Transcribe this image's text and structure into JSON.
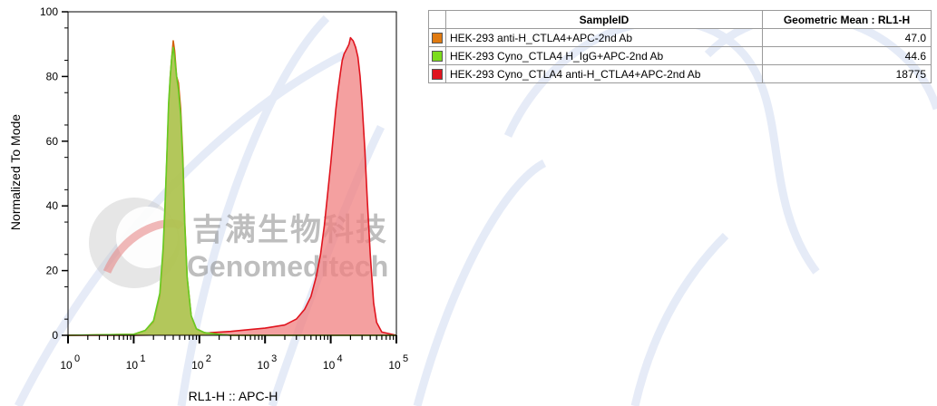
{
  "chart_data": {
    "type": "area",
    "title": "",
    "xlabel": "RL1-H :: APC-H",
    "ylabel": "Normalized To Mode",
    "x_scale": "log",
    "xlim": [
      1,
      100000
    ],
    "ylim": [
      0,
      100
    ],
    "x_ticks": [
      {
        "base": "10",
        "exp": "0"
      },
      {
        "base": "10",
        "exp": "1"
      },
      {
        "base": "10",
        "exp": "2"
      },
      {
        "base": "10",
        "exp": "3"
      },
      {
        "base": "10",
        "exp": "4"
      },
      {
        "base": "10",
        "exp": "5"
      }
    ],
    "y_ticks": [
      "0",
      "20",
      "40",
      "60",
      "80",
      "100"
    ],
    "grid": false,
    "series": [
      {
        "name": "HEK-293 Cyno_CTLA4 anti-H_CTLA4+APC-2nd Ab",
        "color": "#e0141e",
        "fill": "#f08080",
        "x": [
          1,
          10,
          100,
          150,
          300,
          600,
          1000,
          2000,
          3000,
          4000,
          5000,
          6000,
          7000,
          8000,
          9000,
          10000,
          11000,
          12000,
          13000,
          14000,
          15000,
          16000,
          17000,
          18000,
          19000,
          20000,
          22000,
          24000,
          26000,
          28000,
          30000,
          33000,
          36000,
          40000,
          45000,
          50000,
          60000,
          100000
        ],
        "y": [
          0,
          0,
          0.3,
          0.8,
          1.2,
          1.8,
          2.2,
          3.2,
          5,
          8,
          12,
          18,
          25,
          34,
          44,
          53,
          62,
          70,
          76,
          81,
          85,
          87,
          88,
          89,
          90,
          92,
          91,
          89,
          86,
          80,
          72,
          58,
          42,
          25,
          10,
          4,
          1,
          0
        ]
      },
      {
        "name": "HEK-293 anti-H_CTLA4+APC-2nd Ab",
        "color": "#d45f0a",
        "fill": "#c0a03a",
        "x": [
          1,
          10,
          15,
          20,
          25,
          28,
          30,
          32,
          34,
          36,
          38,
          40,
          42,
          45,
          48,
          52,
          56,
          60,
          65,
          75,
          90,
          120,
          200,
          300,
          100000
        ],
        "y": [
          0,
          0.3,
          1.5,
          4,
          12,
          25,
          38,
          55,
          70,
          80,
          86,
          91,
          88,
          80,
          78,
          70,
          55,
          35,
          18,
          6,
          2,
          0.8,
          0.3,
          0,
          0
        ]
      },
      {
        "name": "HEK-293 Cyno_CTLA4 H_IgG+APC-2nd Ab",
        "color": "#66cc22",
        "fill": "#aacc55",
        "x": [
          1,
          10,
          15,
          20,
          25,
          28,
          30,
          32,
          34,
          36,
          38,
          40,
          42,
          45,
          48,
          52,
          56,
          60,
          65,
          75,
          90,
          120,
          200,
          300,
          100000
        ],
        "y": [
          0,
          0.3,
          1.5,
          4.5,
          13,
          27,
          40,
          56,
          72,
          80,
          86,
          89,
          86,
          80,
          76,
          68,
          53,
          34,
          18,
          6,
          2,
          0.8,
          0.3,
          0,
          0
        ]
      }
    ]
  },
  "watermark": {
    "text_cn": "吉满生物科技",
    "text_en": "Genomeditech"
  },
  "table": {
    "headers": [
      "SampleID",
      "Geometric Mean : RL1-H"
    ],
    "rows": [
      {
        "color": "#e07a10",
        "name": "HEK-293 anti-H_CTLA4+APC-2nd Ab",
        "value": "47.0"
      },
      {
        "color": "#7cdc1c",
        "name": "HEK-293 Cyno_CTLA4 H_IgG+APC-2nd Ab",
        "value": "44.6"
      },
      {
        "color": "#e0141e",
        "name": "HEK-293 Cyno_CTLA4 anti-H_CTLA4+APC-2nd Ab",
        "value": "18775"
      }
    ]
  }
}
